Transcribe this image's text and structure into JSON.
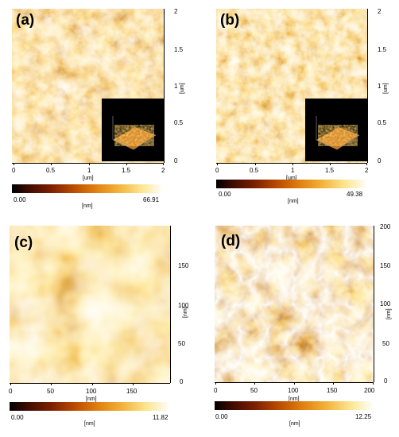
{
  "panels": {
    "a": {
      "label": "(a)",
      "x_ticks": [
        "0",
        "0.5",
        "1",
        "1.5",
        "2"
      ],
      "y_ticks": [
        "2",
        "1.5",
        "1",
        "0.5",
        "0"
      ],
      "x_unit": "[um]",
      "y_unit": "[um]",
      "colorbar": {
        "min": "0.00",
        "max": "66.91",
        "unit": "[nm]"
      },
      "inset_3d": true
    },
    "b": {
      "label": "(b)",
      "x_ticks": [
        "0",
        "0.5",
        "1",
        "1.5",
        "2"
      ],
      "y_ticks": [
        "2",
        "1.5",
        "1",
        "0.5",
        "0"
      ],
      "x_unit": "[um]",
      "y_unit": "[um]",
      "colorbar": {
        "min": "0.00",
        "max": "49.38",
        "unit": "[nm]"
      },
      "inset_3d": true
    },
    "c": {
      "label": "(c)",
      "x_ticks": [
        "0",
        "50",
        "100",
        "150"
      ],
      "y_ticks": [
        "150",
        "100",
        "50",
        "0"
      ],
      "x_unit": "[nm]",
      "y_unit": "[nm]",
      "colorbar": {
        "min": "0.00",
        "max": "11.82",
        "unit": "[nm]"
      },
      "inset_3d": false
    },
    "d": {
      "label": "(d)",
      "x_ticks": [
        "0",
        "50",
        "100",
        "150",
        "200"
      ],
      "y_ticks": [
        "200",
        "150",
        "100",
        "50",
        "0"
      ],
      "x_unit": "[nm]",
      "y_unit": "[nm]",
      "colorbar": {
        "min": "0.00",
        "max": "12.25",
        "unit": "[nm]"
      },
      "inset_3d": false
    }
  },
  "colors": {
    "low": "#000000",
    "mid": "#d46a0a",
    "high": "#ffffff"
  }
}
